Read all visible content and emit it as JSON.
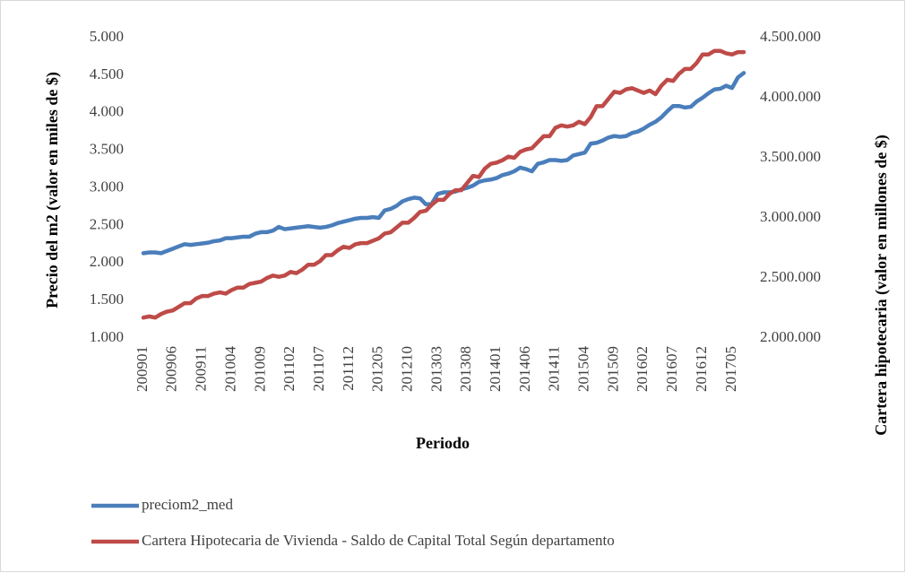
{
  "chart_data": {
    "type": "line",
    "x_label": "Periodo",
    "y_label": "Precio del m2 (valor en miles de $)",
    "y2_label": "Cartera hipotecaria (valor en millones de $)",
    "legend": "bottom",
    "categories": [
      "200901",
      null,
      null,
      null,
      null,
      "200906",
      null,
      null,
      null,
      null,
      "200911",
      null,
      null,
      null,
      null,
      "201004",
      null,
      null,
      null,
      null,
      "201009",
      null,
      null,
      null,
      null,
      "201102",
      null,
      null,
      null,
      null,
      "201107",
      null,
      null,
      null,
      null,
      "201112",
      null,
      null,
      null,
      null,
      "201205",
      null,
      null,
      null,
      null,
      "201210",
      null,
      null,
      null,
      null,
      "201303",
      null,
      null,
      null,
      null,
      "201308",
      null,
      null,
      null,
      null,
      "201401",
      null,
      null,
      null,
      null,
      "201406",
      null,
      null,
      null,
      null,
      "201411",
      null,
      null,
      null,
      null,
      "201504",
      null,
      null,
      null,
      null,
      "201509",
      null,
      null,
      null,
      null,
      "201602",
      null,
      null,
      null,
      null,
      "201607",
      null,
      null,
      null,
      null,
      "201612",
      null,
      null,
      null,
      null,
      "201705",
      null,
      null
    ],
    "ylim": [
      1000,
      5000
    ],
    "yticks": [
      {
        "value": 1000,
        "label": "1.000"
      },
      {
        "value": 1500,
        "label": "1.500"
      },
      {
        "value": 2000,
        "label": "2.000"
      },
      {
        "value": 2500,
        "label": "2.500"
      },
      {
        "value": 3000,
        "label": "3.000"
      },
      {
        "value": 3500,
        "label": "3.500"
      },
      {
        "value": 4000,
        "label": "4.000"
      },
      {
        "value": 4500,
        "label": "4.500"
      },
      {
        "value": 5000,
        "label": "5.000"
      }
    ],
    "y2lim": [
      2000000,
      4500000
    ],
    "y2ticks": [
      {
        "value": 2000000,
        "label": "2.000.000"
      },
      {
        "value": 2500000,
        "label": "2.500.000"
      },
      {
        "value": 3000000,
        "label": "3.000.000"
      },
      {
        "value": 3500000,
        "label": "3.500.000"
      },
      {
        "value": 4000000,
        "label": "4.000.000"
      },
      {
        "value": 4500000,
        "label": "4.500.000"
      }
    ],
    "series": [
      {
        "name": "preciom2_med",
        "color": "#4a7ebb",
        "values": [
          2130,
          2140,
          2140,
          2130,
          2160,
          2190,
          2220,
          2250,
          2240,
          2250,
          2260,
          2270,
          2290,
          2300,
          2330,
          2330,
          2340,
          2350,
          2350,
          2390,
          2410,
          2410,
          2430,
          2480,
          2450,
          2460,
          2470,
          2480,
          2490,
          2480,
          2470,
          2480,
          2500,
          2530,
          2550,
          2570,
          2590,
          2600,
          2600,
          2610,
          2600,
          2700,
          2720,
          2760,
          2820,
          2850,
          2870,
          2860,
          2780,
          2790,
          2920,
          2940,
          2940,
          2950,
          2980,
          3000,
          3030,
          3080,
          3100,
          3110,
          3130,
          3170,
          3190,
          3220,
          3270,
          3250,
          3220,
          3320,
          3340,
          3370,
          3370,
          3360,
          3370,
          3430,
          3450,
          3470,
          3590,
          3600,
          3630,
          3670,
          3690,
          3680,
          3690,
          3730,
          3750,
          3790,
          3840,
          3880,
          3940,
          4020,
          4090,
          4090,
          4070,
          4080,
          4150,
          4200,
          4260,
          4310,
          4320,
          4360,
          4330,
          4470,
          4530
        ]
      },
      {
        "name": "Cartera Hipotecaria de Vivienda - Saldo de Capital Total Según departamento",
        "color": "#be4b48",
        "axis": "y2",
        "values": [
          2170000,
          2180000,
          2170000,
          2200000,
          2220000,
          2230000,
          2260000,
          2290000,
          2290000,
          2330000,
          2350000,
          2350000,
          2370000,
          2380000,
          2370000,
          2400000,
          2420000,
          2420000,
          2450000,
          2460000,
          2470000,
          2500000,
          2520000,
          2510000,
          2520000,
          2550000,
          2540000,
          2570000,
          2610000,
          2610000,
          2640000,
          2690000,
          2690000,
          2730000,
          2760000,
          2750000,
          2780000,
          2790000,
          2790000,
          2810000,
          2830000,
          2870000,
          2880000,
          2920000,
          2960000,
          2960000,
          3000000,
          3050000,
          3060000,
          3110000,
          3150000,
          3150000,
          3200000,
          3230000,
          3230000,
          3290000,
          3350000,
          3340000,
          3410000,
          3450000,
          3460000,
          3480000,
          3510000,
          3500000,
          3550000,
          3570000,
          3580000,
          3630000,
          3680000,
          3680000,
          3750000,
          3770000,
          3760000,
          3770000,
          3800000,
          3780000,
          3840000,
          3930000,
          3930000,
          3990000,
          4050000,
          4040000,
          4070000,
          4080000,
          4060000,
          4040000,
          4060000,
          4030000,
          4100000,
          4150000,
          4140000,
          4200000,
          4240000,
          4240000,
          4290000,
          4360000,
          4360000,
          4390000,
          4390000,
          4370000,
          4360000,
          4380000,
          4380000
        ]
      }
    ]
  }
}
